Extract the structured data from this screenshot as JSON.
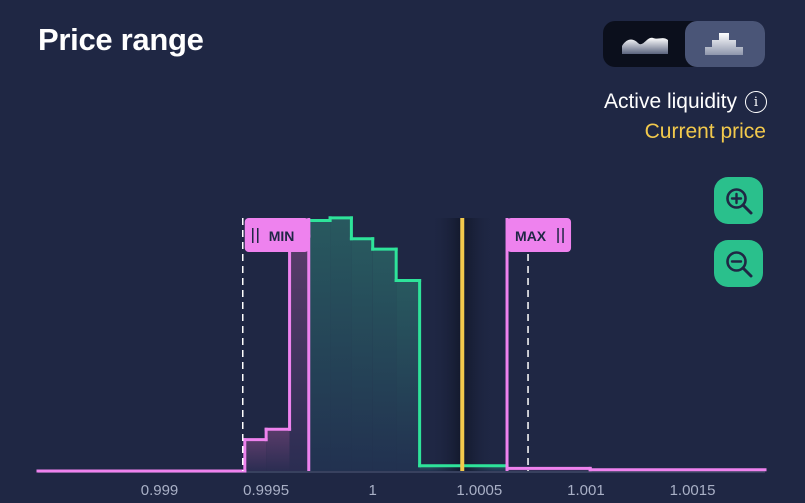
{
  "header": {
    "title": "Price range"
  },
  "toggle": {
    "curve_icon": "curve-chart-icon",
    "step_icon": "step-chart-icon",
    "selected": "step"
  },
  "legend": {
    "active_liquidity": "Active liquidity",
    "info_icon_text": "i",
    "current_price": "Current price"
  },
  "zoom": {
    "in_icon": "zoom-in-icon",
    "out_icon": "zoom-out-icon"
  },
  "colors": {
    "background": "#1f2744",
    "min_max": "#ee82ee",
    "active": "#2ee39a",
    "current": "#f2c94c",
    "zoom": "#2ac08c"
  },
  "chart_data": {
    "type": "area",
    "x_ticks": [
      "0.999",
      "0.9995",
      "1",
      "1.0005",
      "1.001",
      "1.0015"
    ],
    "x_tick_values": [
      0.999,
      0.9995,
      1,
      1.0005,
      1.001,
      1.0015
    ],
    "xlim": [
      0.99843,
      1.00184
    ],
    "ylim": [
      0,
      1.0
    ],
    "steps": [
      {
        "x0": 0.99843,
        "x1": 0.9994,
        "y": 0.0
      },
      {
        "x0": 0.9994,
        "x1": 0.9995,
        "y": 0.12
      },
      {
        "x0": 0.9995,
        "x1": 0.99961,
        "y": 0.16
      },
      {
        "x0": 0.99961,
        "x1": 0.9997,
        "y": 0.9
      },
      {
        "x0": 0.9997,
        "x1": 0.9998,
        "y": 0.96
      },
      {
        "x0": 0.9998,
        "x1": 0.9999,
        "y": 0.97
      },
      {
        "x0": 0.9999,
        "x1": 1.0,
        "y": 0.89
      },
      {
        "x0": 1.0,
        "x1": 1.00011,
        "y": 0.85
      },
      {
        "x0": 1.00011,
        "x1": 1.00022,
        "y": 0.73
      },
      {
        "x0": 1.00022,
        "x1": 1.00063,
        "y": 0.02
      },
      {
        "x0": 1.00063,
        "x1": 1.00102,
        "y": 0.01
      },
      {
        "x0": 1.00102,
        "x1": 1.00184,
        "y": 0.005
      }
    ],
    "min_price": 0.9997,
    "max_price": 1.00063,
    "current_price": 1.00042,
    "min_label": "MIN",
    "max_label": "MAX"
  }
}
